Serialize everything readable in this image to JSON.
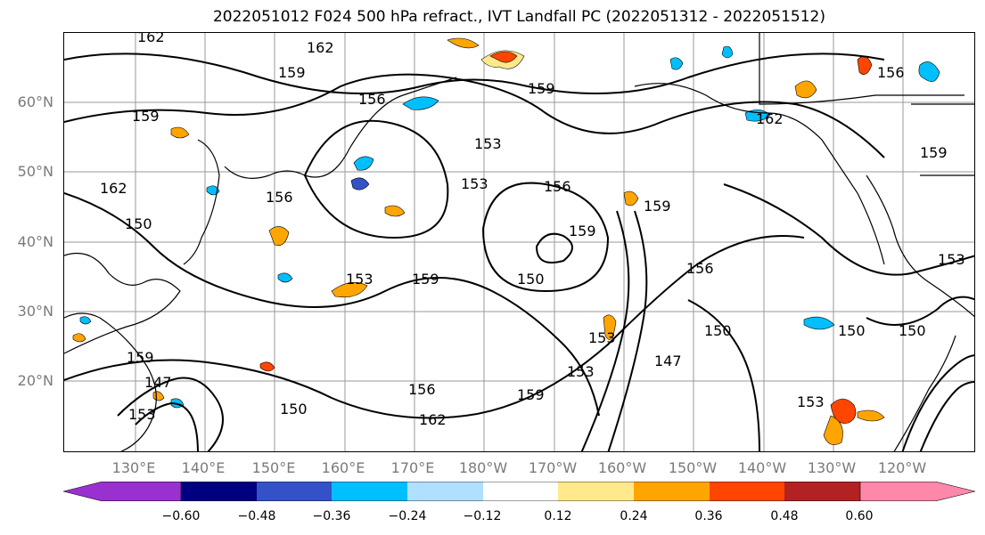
{
  "title": "2022051012 F024 500 hPa refract., IVT Landfall PC (2022051312 - 2022051512)",
  "map": {
    "lat_labels": [
      "60°N",
      "50°N",
      "40°N",
      "30°N",
      "20°N"
    ],
    "lon_labels": [
      "130°E",
      "140°E",
      "150°E",
      "160°E",
      "170°E",
      "180°W",
      "170°W",
      "160°W",
      "150°W",
      "140°W",
      "130°W",
      "120°W"
    ],
    "contour_labels": [
      "162",
      "162",
      "159",
      "159",
      "159",
      "162",
      "156",
      "153",
      "153",
      "156",
      "159",
      "162",
      "156",
      "150",
      "159",
      "153",
      "159",
      "150",
      "153",
      "150",
      "156",
      "153",
      "147",
      "150",
      "150",
      "153",
      "162",
      "159",
      "156",
      "150",
      "147",
      "159",
      "153",
      "159",
      "156",
      "153"
    ],
    "land_color": "#000000",
    "grid_color": "#9a9a9a"
  },
  "colorbar": {
    "colors": [
      "#9b30d0",
      "#000080",
      "#3352c8",
      "#00bfff",
      "#afe0ff",
      "#ffffff",
      "#ffe98a",
      "#ffa500",
      "#ff4500",
      "#b22222",
      "#ff88aa"
    ],
    "tick_labels": [
      "−0.60",
      "−0.48",
      "−0.36",
      "−0.24",
      "−0.12",
      "0.12",
      "0.24",
      "0.36",
      "0.48",
      "0.60"
    ]
  }
}
